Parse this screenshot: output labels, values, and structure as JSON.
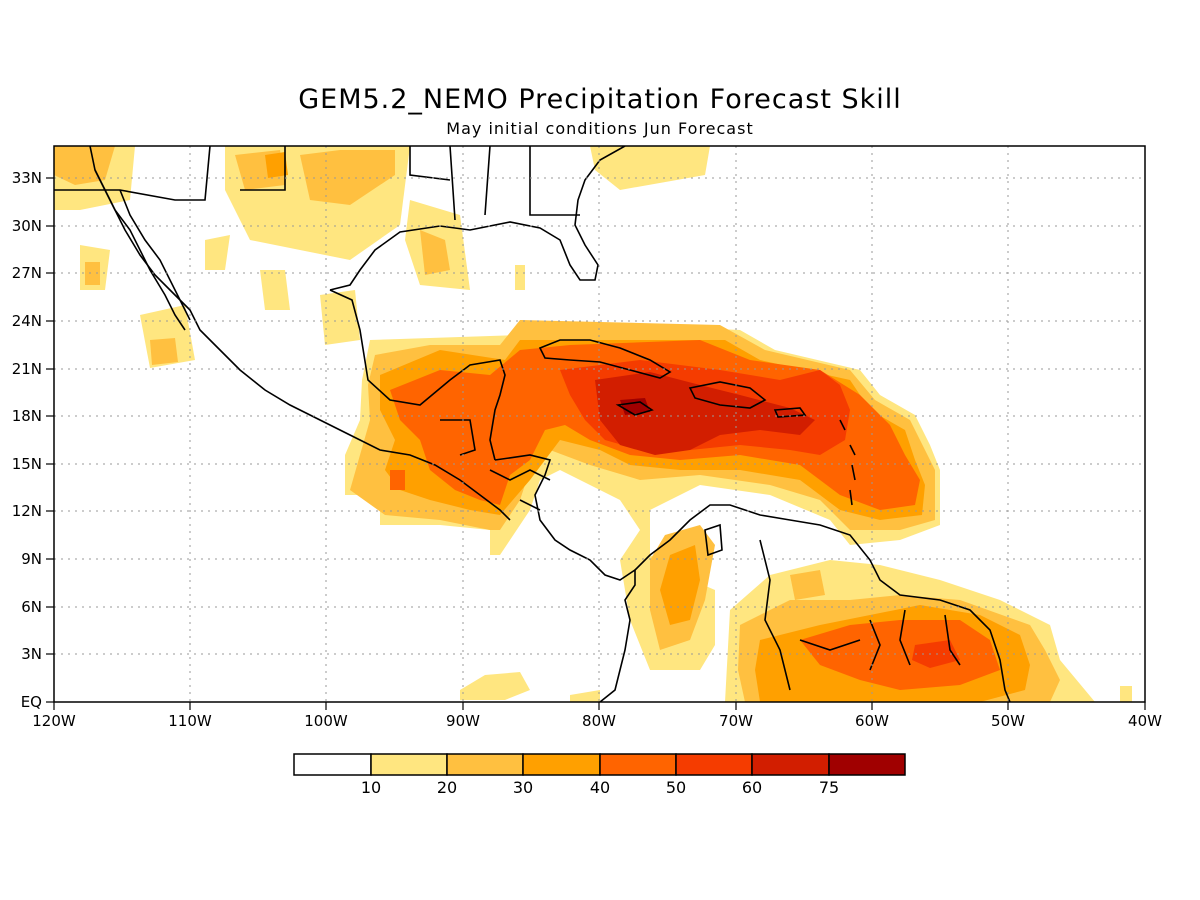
{
  "title": "GEM5.2_NEMO Precipitation Forecast Skill",
  "subtitle": "May initial conditions  Jun Forecast",
  "axes": {
    "lon_labels": [
      "120W",
      "110W",
      "100W",
      "90W",
      "80W",
      "70W",
      "60W",
      "50W",
      "40W"
    ],
    "lat_labels": [
      "EQ",
      "3N",
      "6N",
      "9N",
      "12N",
      "15N",
      "18N",
      "21N",
      "24N",
      "27N",
      "30N",
      "33N"
    ]
  },
  "colorbar": {
    "labels": [
      "10",
      "20",
      "30",
      "40",
      "50",
      "60",
      "75"
    ],
    "colors": [
      "#ffffff",
      "#ffe680",
      "#ffc040",
      "#ffa000",
      "#ff6400",
      "#f53c00",
      "#d21e00",
      "#a00000"
    ]
  },
  "chart_data": {
    "type": "heatmap",
    "title": "GEM5.2_NEMO Precipitation Forecast Skill",
    "subtitle": "May initial conditions  Jun Forecast",
    "lon_range": [
      -120,
      -40
    ],
    "lat_range": [
      0,
      35
    ],
    "grid": true,
    "colorbar_levels": [
      10,
      20,
      30,
      40,
      50,
      60,
      75
    ]
  }
}
